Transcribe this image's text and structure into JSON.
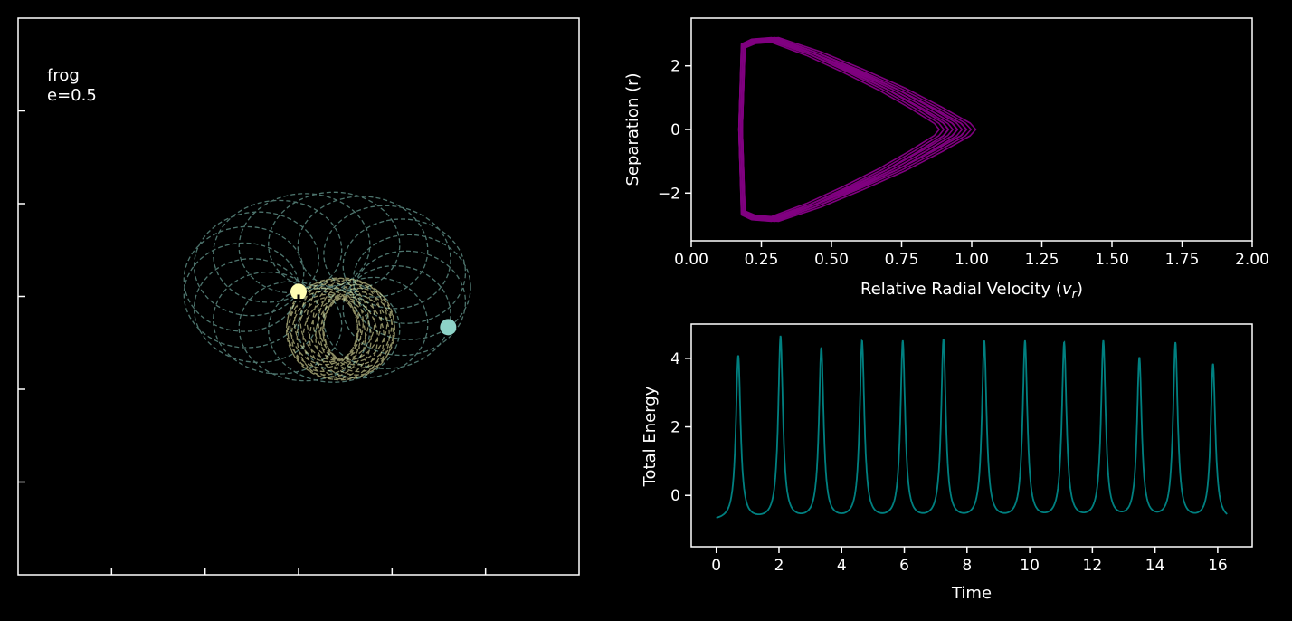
{
  "chart_data": [
    {
      "type": "scatter",
      "panel": "orbit",
      "annotation_lines": [
        "frog",
        "e=0.5"
      ],
      "xlim": [
        -3,
        3
      ],
      "ylim": [
        -3,
        3
      ],
      "ticks": [
        -2,
        -1,
        0,
        1,
        2
      ],
      "tick_labels_shown": false,
      "bodies": [
        {
          "name": "",
          "x": 0.0,
          "y": 0.05,
          "color": "#ffffb3"
        },
        {
          "name": "",
          "x": 1.6,
          "y": -0.33,
          "color": "#8dd3c7"
        }
      ],
      "center_marker": {
        "x": 0.0,
        "y": 0.0,
        "symbol": "+"
      },
      "orbits": [
        {
          "color": "#8dd3c7",
          "style": "dashed",
          "center": [
            0.3,
            0.1
          ],
          "loop_radius": [
            0.62,
            0.52
          ],
          "drift_radius": 0.92,
          "loops": 18
        },
        {
          "color": "#ffffb3",
          "style": "dashed",
          "center": [
            0.45,
            -0.35
          ],
          "loop_radius": [
            0.38,
            0.44
          ],
          "drift_radius": 0.2,
          "loops": 18
        }
      ],
      "colors": {
        "frame": "#ffffff",
        "background": "#000000"
      }
    },
    {
      "type": "line",
      "panel": "phase",
      "title": "",
      "xlabel": "Relative Radial Velocity ($v_r$)",
      "xlabel_parts": {
        "main": "Relative Radial Velocity (",
        "var": "v",
        "sub": "r",
        "close": ")"
      },
      "ylabel": "Separation (r)",
      "xlim": [
        0.0,
        2.0
      ],
      "ylim": [
        -3.5,
        3.5
      ],
      "xticks": [
        0.0,
        0.25,
        0.5,
        0.75,
        1.0,
        1.25,
        1.5,
        1.75,
        2.0
      ],
      "xtick_labels": [
        "0.00",
        "0.25",
        "0.50",
        "0.75",
        "1.00",
        "1.25",
        "1.50",
        "1.75",
        "2.00"
      ],
      "yticks": [
        -2,
        0,
        2
      ],
      "ytick_labels": [
        "−2",
        "0",
        "2"
      ],
      "grid": false,
      "color": "#800080",
      "series": [
        {
          "x": [
            0.18,
            0.22,
            0.3,
            0.45,
            0.6,
            0.75,
            0.88,
            0.98,
            1.0,
            0.98,
            0.88,
            0.75,
            0.6,
            0.45,
            0.3,
            0.22,
            0.18,
            0.17,
            0.18
          ],
          "y": [
            -2.7,
            -2.85,
            -2.9,
            -2.45,
            -1.9,
            -1.3,
            -0.7,
            -0.2,
            0.0,
            0.2,
            0.7,
            1.3,
            1.9,
            2.45,
            2.9,
            2.85,
            2.7,
            0.0,
            -2.7
          ]
        }
      ]
    },
    {
      "type": "line",
      "panel": "energy",
      "title": "",
      "xlabel": "Time",
      "ylabel": "Total Energy",
      "xlim": [
        -0.8,
        17.1
      ],
      "ylim": [
        -1.5,
        5.0
      ],
      "xticks": [
        0,
        2,
        4,
        6,
        8,
        10,
        12,
        14,
        16
      ],
      "xtick_labels": [
        "0",
        "2",
        "4",
        "6",
        "8",
        "10",
        "12",
        "14",
        "16"
      ],
      "yticks": [
        0,
        2,
        4
      ],
      "ytick_labels": [
        "0",
        "2",
        "4"
      ],
      "grid": false,
      "color": "#008080",
      "t_end": 16.3,
      "baseline": -0.75,
      "peaks": [
        {
          "t": 0.7,
          "value": 4.05
        },
        {
          "t": 2.05,
          "value": 4.6
        },
        {
          "t": 3.35,
          "value": 4.25
        },
        {
          "t": 4.65,
          "value": 4.45
        },
        {
          "t": 5.95,
          "value": 4.45
        },
        {
          "t": 7.25,
          "value": 4.5
        },
        {
          "t": 8.55,
          "value": 4.45
        },
        {
          "t": 9.85,
          "value": 4.45
        },
        {
          "t": 11.1,
          "value": 4.4
        },
        {
          "t": 12.35,
          "value": 4.45
        },
        {
          "t": 13.5,
          "value": 3.95
        },
        {
          "t": 14.65,
          "value": 4.4
        },
        {
          "t": 15.85,
          "value": 3.8
        }
      ]
    }
  ]
}
